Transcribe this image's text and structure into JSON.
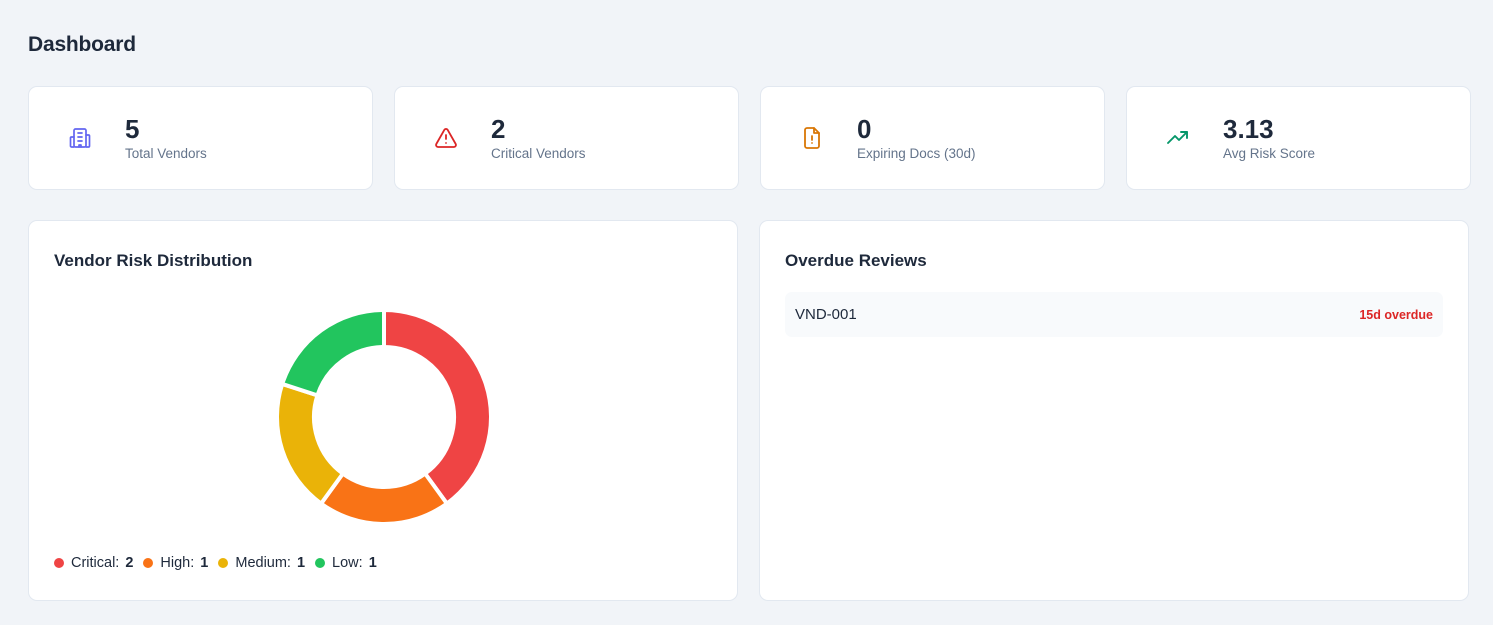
{
  "page": {
    "title": "Dashboard"
  },
  "stats": [
    {
      "value": "5",
      "label": "Total Vendors",
      "icon": "building-icon",
      "color": "#6366f1"
    },
    {
      "value": "2",
      "label": "Critical Vendors",
      "icon": "warning-triangle-icon",
      "color": "#dc2626"
    },
    {
      "value": "0",
      "label": "Expiring Docs (30d)",
      "icon": "file-alert-icon",
      "color": "#d97706"
    },
    {
      "value": "3.13",
      "label": "Avg Risk Score",
      "icon": "trending-up-icon",
      "color": "#059669"
    }
  ],
  "risk_panel": {
    "title": "Vendor Risk Distribution"
  },
  "chart_data": {
    "type": "pie",
    "style": "donut",
    "categories": [
      "Critical",
      "High",
      "Medium",
      "Low"
    ],
    "values": [
      2,
      1,
      1,
      1
    ],
    "colors": [
      "#ef4444",
      "#f97316",
      "#eab308",
      "#22c55e"
    ],
    "legend": "bottom-left"
  },
  "legend": [
    {
      "label": "Critical:",
      "value": "2",
      "color": "#ef4444"
    },
    {
      "label": "High:",
      "value": "1",
      "color": "#f97316"
    },
    {
      "label": "Medium:",
      "value": "1",
      "color": "#eab308"
    },
    {
      "label": "Low:",
      "value": "1",
      "color": "#22c55e"
    }
  ],
  "overdue_panel": {
    "title": "Overdue Reviews",
    "items": [
      {
        "id": "VND-001",
        "status": "15d overdue"
      }
    ]
  }
}
